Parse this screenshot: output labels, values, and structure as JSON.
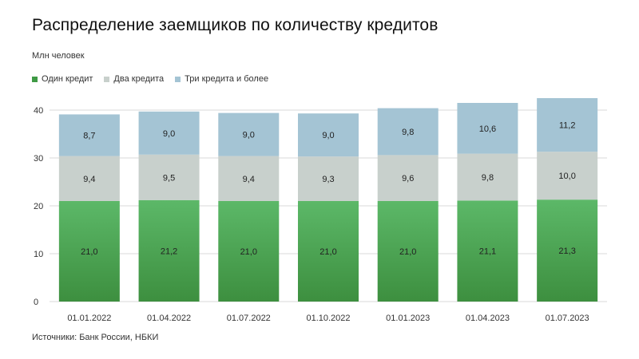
{
  "title": "Распределение заемщиков по количеству кредитов",
  "units": "Млн человек",
  "source": "Источники: Банк России, НБКИ",
  "colors": {
    "one_top": "#5cb868",
    "one_bottom": "#3d8f3f",
    "two": "#c8d0cc",
    "three": "#a4c4d4",
    "grid": "#d9d9d9",
    "text": "#333333"
  },
  "chart_data": {
    "type": "bar",
    "stacked": true,
    "categories": [
      "01.01.2022",
      "01.04.2022",
      "01.07.2022",
      "01.10.2022",
      "01.01.2023",
      "01.04.2023",
      "01.07.2023"
    ],
    "series": [
      {
        "name": "Один кредит",
        "values": [
          21.0,
          21.2,
          21.0,
          21.0,
          21.0,
          21.1,
          21.3
        ],
        "labels": [
          "21,0",
          "21,2",
          "21,0",
          "21,0",
          "21,0",
          "21,1",
          "21,3"
        ]
      },
      {
        "name": "Два кредита",
        "values": [
          9.4,
          9.5,
          9.4,
          9.3,
          9.6,
          9.8,
          10.0
        ],
        "labels": [
          "9,4",
          "9,5",
          "9,4",
          "9,3",
          "9,6",
          "9,8",
          "10,0"
        ]
      },
      {
        "name": "Три кредита и более",
        "values": [
          8.7,
          9.0,
          9.0,
          9.0,
          9.8,
          10.6,
          11.2
        ],
        "labels": [
          "8,7",
          "9,0",
          "9,0",
          "9,0",
          "9,8",
          "10,6",
          "11,2"
        ]
      }
    ],
    "yticks": [
      "0",
      "10",
      "20",
      "30",
      "40"
    ],
    "ylim": [
      0,
      40
    ],
    "ylabel": "Млн человек",
    "grid": true,
    "legend_position": "top-left"
  }
}
